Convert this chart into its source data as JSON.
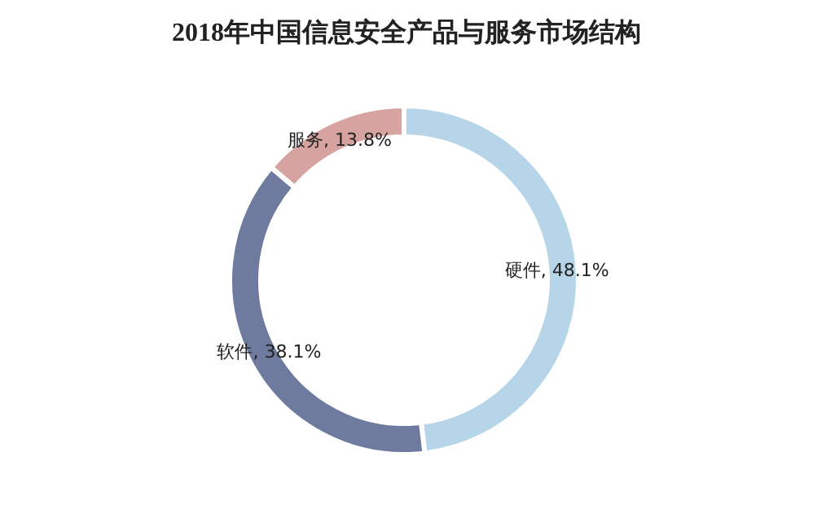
{
  "chart_data": {
    "type": "donut",
    "title": "2018年中国信息安全产品与服务市场结构",
    "categories": [
      "硬件",
      "软件",
      "服务"
    ],
    "values": [
      48.1,
      38.1,
      13.8
    ],
    "colors": [
      "#b7d5e8",
      "#6f7a9f",
      "#d6a3a1"
    ],
    "value_labels": [
      "48.1%",
      "38.1%",
      "13.8%"
    ],
    "legend": false
  }
}
